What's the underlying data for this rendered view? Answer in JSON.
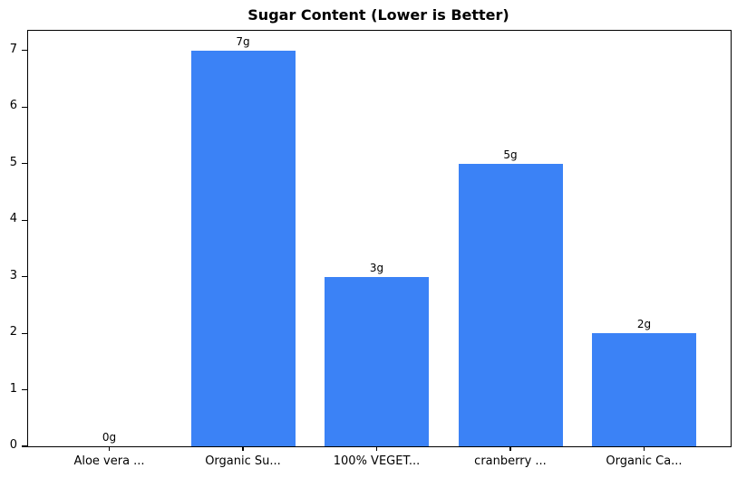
{
  "chart_data": {
    "type": "bar",
    "title": "Sugar Content (Lower is Better)",
    "categories": [
      "Aloe vera ...",
      "Organic Su...",
      "100% VEGET...",
      "cranberry ...",
      "Organic Ca..."
    ],
    "values": [
      0,
      7,
      3,
      5,
      2
    ],
    "value_labels": [
      "0g",
      "7g",
      "3g",
      "5g",
      "2g"
    ],
    "xlabel": "",
    "ylabel": "",
    "yticks": [
      0,
      1,
      2,
      3,
      4,
      5,
      6,
      7
    ],
    "ylim": [
      0,
      7.35
    ],
    "grid": false,
    "legend": null,
    "bar_color": "#3b82f6",
    "spine_color": "#000000",
    "text_color": "#000000"
  }
}
